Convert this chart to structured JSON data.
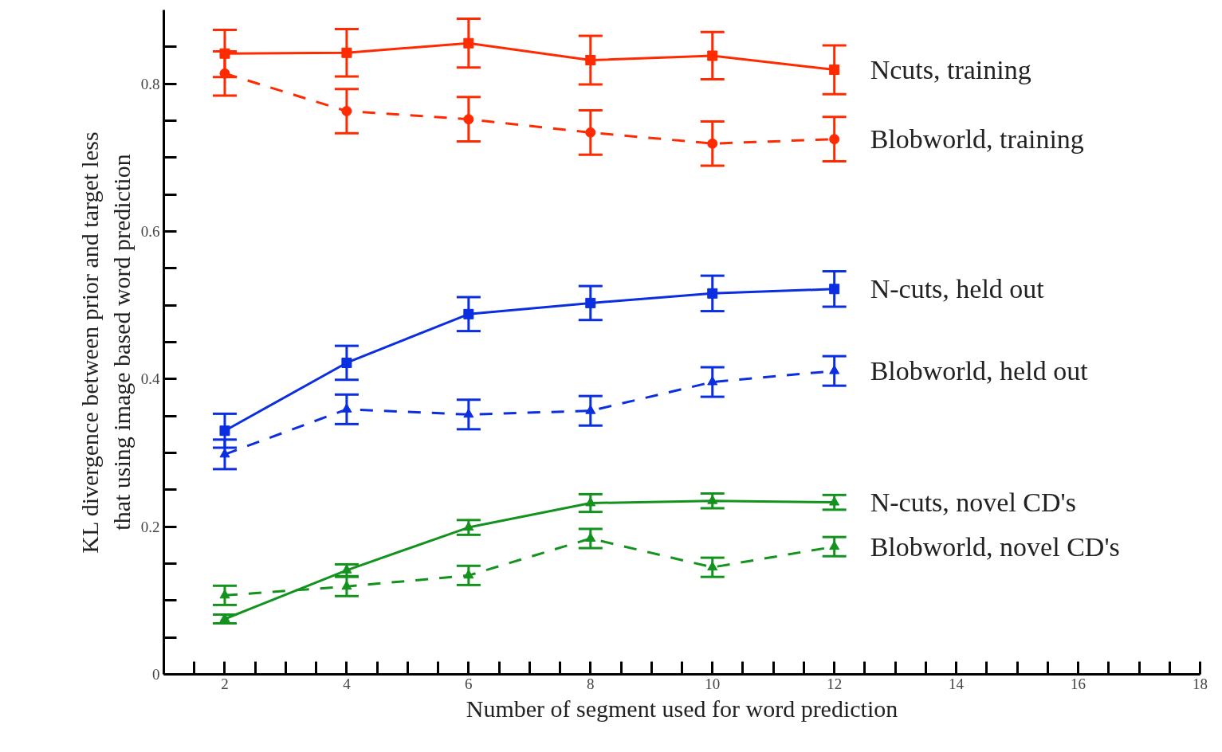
{
  "chart_data": {
    "type": "line",
    "xlabel": "Number of segment used for word prediction",
    "ylabel": "KL divergence between prior and target less\nthat using image based word prediction",
    "x": [
      2,
      4,
      6,
      8,
      10,
      12
    ],
    "xlim": [
      1,
      18
    ],
    "ylim": [
      0,
      0.9
    ],
    "xticks": [
      {
        "value": 1.5,
        "label": null
      },
      2,
      {
        "value": 2.5,
        "label": null
      },
      {
        "value": 3,
        "label": null
      },
      {
        "value": 3.5,
        "label": null
      },
      4,
      {
        "value": 4.5,
        "label": null
      },
      {
        "value": 5,
        "label": null
      },
      {
        "value": 5.5,
        "label": null
      },
      6,
      {
        "value": 6.5,
        "label": null
      },
      {
        "value": 7,
        "label": null
      },
      {
        "value": 7.5,
        "label": null
      },
      8,
      {
        "value": 8.5,
        "label": null
      },
      {
        "value": 9,
        "label": null
      },
      {
        "value": 9.5,
        "label": null
      },
      10,
      {
        "value": 10.5,
        "label": null
      },
      {
        "value": 11,
        "label": null
      },
      {
        "value": 11.5,
        "label": null
      },
      12,
      {
        "value": 12.5,
        "label": null
      },
      {
        "value": 13,
        "label": null
      },
      {
        "value": 13.5,
        "label": null
      },
      14,
      {
        "value": 14.5,
        "label": null
      },
      {
        "value": 15,
        "label": null
      },
      {
        "value": 15.5,
        "label": null
      },
      16,
      {
        "value": 16.5,
        "label": null
      },
      {
        "value": 17,
        "label": null
      },
      {
        "value": 17.5,
        "label": null
      },
      18
    ],
    "yticks": [
      0,
      {
        "value": 0.05,
        "label": null
      },
      {
        "value": 0.1,
        "label": null
      },
      {
        "value": 0.15,
        "label": null
      },
      0.2,
      {
        "value": 0.25,
        "label": null
      },
      {
        "value": 0.3,
        "label": null
      },
      {
        "value": 0.35,
        "label": null
      },
      0.4,
      {
        "value": 0.45,
        "label": null
      },
      {
        "value": 0.5,
        "label": null
      },
      {
        "value": 0.55,
        "label": null
      },
      0.6,
      {
        "value": 0.65,
        "label": null
      },
      {
        "value": 0.7,
        "label": null
      },
      {
        "value": 0.75,
        "label": null
      },
      0.8,
      {
        "value": 0.85,
        "label": null
      }
    ],
    "grid": false,
    "series": [
      {
        "name": "Ncuts, training",
        "color": "#ff2a00",
        "line_style": "solid",
        "marker": "square",
        "values": [
          0.841,
          0.842,
          0.855,
          0.832,
          0.838,
          0.819
        ],
        "errors": [
          0.032,
          0.032,
          0.033,
          0.033,
          0.032,
          0.033
        ]
      },
      {
        "name": "Blobworld, training",
        "color": "#ff2a00",
        "line_style": "dashed",
        "marker": "circle",
        "values": [
          0.814,
          0.763,
          0.752,
          0.734,
          0.719,
          0.725
        ],
        "errors": [
          0.03,
          0.03,
          0.03,
          0.03,
          0.03,
          0.03
        ]
      },
      {
        "name": "N-cuts, held out",
        "color": "#0a2ee0",
        "line_style": "solid",
        "marker": "square",
        "values": [
          0.33,
          0.422,
          0.488,
          0.503,
          0.516,
          0.522
        ],
        "errors": [
          0.023,
          0.023,
          0.023,
          0.023,
          0.024,
          0.024
        ]
      },
      {
        "name": "Blobworld, held out",
        "color": "#0a2ee0",
        "line_style": "dashed",
        "marker": "triangle",
        "values": [
          0.298,
          0.359,
          0.352,
          0.357,
          0.396,
          0.411
        ],
        "errors": [
          0.02,
          0.02,
          0.02,
          0.02,
          0.02,
          0.02
        ]
      },
      {
        "name": "N-cuts, novel CD's",
        "color": "#14921e",
        "line_style": "solid",
        "marker": "triangle",
        "values": [
          0.075,
          0.141,
          0.199,
          0.232,
          0.235,
          0.233
        ],
        "errors": [
          0.006,
          0.008,
          0.01,
          0.012,
          0.01,
          0.01
        ]
      },
      {
        "name": "Blobworld, novel CD's",
        "color": "#14921e",
        "line_style": "dashed",
        "marker": "triangle",
        "values": [
          0.107,
          0.119,
          0.134,
          0.184,
          0.145,
          0.173
        ],
        "errors": [
          0.013,
          0.013,
          0.013,
          0.013,
          0.013,
          0.013
        ]
      }
    ]
  }
}
